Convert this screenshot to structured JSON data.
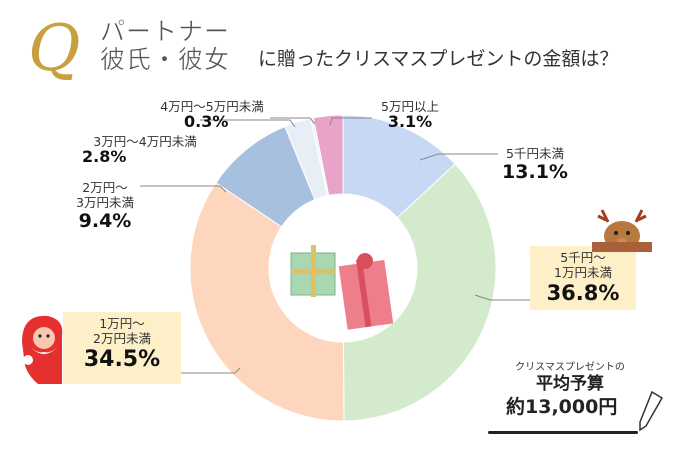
{
  "header": {
    "q": "Q",
    "subject_line1": "パートナー",
    "subject_line2": "彼氏・彼女",
    "question": "に贈ったクリスマスプレゼントの金額は？"
  },
  "chart_data": {
    "type": "pie",
    "donut": true,
    "legend": "none",
    "categories": [
      "5千円未満",
      "5千円〜1万円未満",
      "1万円〜2万円未満",
      "2万円〜3万円未満",
      "3万円〜4万円未満",
      "4万円〜5万円未満",
      "5万円以上"
    ],
    "values": [
      13.1,
      36.8,
      34.5,
      9.4,
      2.8,
      0.3,
      3.1
    ],
    "labels": [
      "13.1%",
      "36.8%",
      "34.5%",
      "9.4%",
      "2.8%",
      "0.3%",
      "3.1%"
    ],
    "colors": [
      "#c6d8f3",
      "#d3eacd",
      "#fdd6bd",
      "#a7c0e0",
      "#e8eef5",
      "#f1f1f1",
      "#e8a3c9"
    ]
  },
  "average": {
    "caption": "クリスマスプレゼントの",
    "title": "平均予算",
    "value": "約13,000円"
  }
}
